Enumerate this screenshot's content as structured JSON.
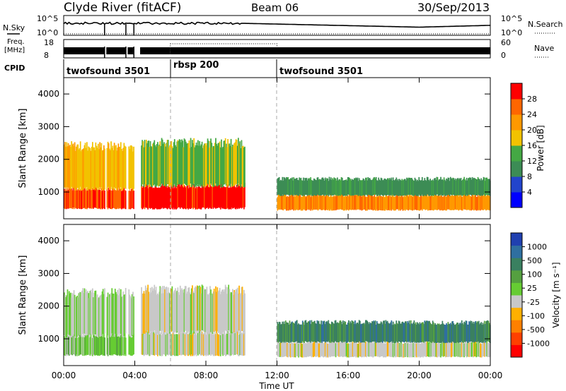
{
  "header": {
    "station": "Clyde River (fitACF)",
    "beam": "Beam 06",
    "date": "30/Sep/2013"
  },
  "top_panels": {
    "nsky_label": "N.Sky",
    "nsky_ticks": [
      "10^5",
      "10^0"
    ],
    "nsearch_label": "N.Search",
    "freq_label_1": "Freq.",
    "freq_label_2": "[MHz]",
    "freq_ticks": [
      "18",
      "8"
    ],
    "nave_label": "Nave",
    "nave_ticks": [
      "60",
      "0"
    ],
    "cpid_label": "CPID",
    "cpid_segments": [
      {
        "label": "twofsound 3501",
        "start_h": 0,
        "end_h": 6
      },
      {
        "label": "rbsp 200",
        "start_h": 6,
        "end_h": 12
      },
      {
        "label": "twofsound 3501",
        "start_h": 12,
        "end_h": 24
      }
    ]
  },
  "axes": {
    "xlabel": "Time UT",
    "x_ticks": [
      "00:00",
      "04:00",
      "08:00",
      "12:00",
      "16:00",
      "20:00",
      "00:00"
    ],
    "ylabel": "Slant Range [km]",
    "y_ticks": [
      "1000",
      "2000",
      "3000",
      "4000"
    ]
  },
  "colorbars": {
    "power": {
      "label": "Power [dB]",
      "ticks": [
        "4",
        "8",
        "12",
        "16",
        "20",
        "24",
        "28"
      ],
      "colors": [
        "#0000ff",
        "#2244cc",
        "#3c8c55",
        "#44a844",
        "#f2c200",
        "#ff9900",
        "#ff6600",
        "#ff0000"
      ]
    },
    "velocity": {
      "label": "Velocity [m s⁻¹]",
      "ticks": [
        "1000",
        "500",
        "100",
        "25",
        "-25",
        "-100",
        "-500",
        "-1000"
      ],
      "colors": [
        "#2040b0",
        "#2f6fa0",
        "#3a8060",
        "#55a040",
        "#66cc33",
        "#c8c8c8",
        "#ffb000",
        "#ff8000",
        "#ff4000",
        "#ff0000"
      ]
    }
  },
  "chart_data": {
    "type": "heatmap",
    "title": "Clyde River (fitACF)  Beam 06  30/Sep/2013",
    "xlabel": "Time UT",
    "ylabel": "Slant Range [km]",
    "xlim_hours": [
      0,
      24
    ],
    "ylim_km": [
      180,
      4500
    ],
    "data_gaps_hours": [
      [
        2.3,
        2.4
      ],
      [
        3.5,
        3.6
      ],
      [
        3.95,
        4.3
      ]
    ],
    "mode_boundaries_hours": [
      6,
      12
    ],
    "panels": [
      {
        "name": "Power",
        "unit": "dB",
        "scale": [
          0,
          30
        ],
        "regions": [
          {
            "t_start": 0.0,
            "t_end": 4.0,
            "r_low": 500,
            "r_high": 1100,
            "value": 26
          },
          {
            "t_start": 0.0,
            "t_end": 4.0,
            "r_low": 1100,
            "r_high": 2400,
            "value": 18
          },
          {
            "t_start": 4.3,
            "t_end": 10.2,
            "r_low": 500,
            "r_high": 1200,
            "value": 28
          },
          {
            "t_start": 4.3,
            "t_end": 10.2,
            "r_low": 1200,
            "r_high": 2500,
            "value": 14
          },
          {
            "t_start": 12.0,
            "t_end": 24.0,
            "r_low": 450,
            "r_high": 900,
            "value": 22
          },
          {
            "t_start": 12.0,
            "t_end": 24.0,
            "r_low": 900,
            "r_high": 1400,
            "value": 10
          }
        ]
      },
      {
        "name": "Velocity",
        "unit": "m s⁻¹",
        "scale": [
          -1000,
          1000
        ],
        "regions": [
          {
            "t_start": 0.0,
            "t_end": 4.0,
            "r_low": 500,
            "r_high": 1100,
            "value": 100
          },
          {
            "t_start": 0.0,
            "t_end": 4.0,
            "r_low": 1100,
            "r_high": 2400,
            "value": -25
          },
          {
            "t_start": 4.3,
            "t_end": 10.2,
            "r_low": 500,
            "r_high": 1200,
            "value": -100
          },
          {
            "t_start": 4.3,
            "t_end": 10.2,
            "r_low": 1200,
            "r_high": 2500,
            "value": -100
          },
          {
            "t_start": 12.0,
            "t_end": 24.0,
            "r_low": 450,
            "r_high": 900,
            "value": -100
          },
          {
            "t_start": 12.0,
            "t_end": 24.0,
            "r_low": 900,
            "r_high": 1500,
            "value": 500
          }
        ]
      }
    ]
  }
}
